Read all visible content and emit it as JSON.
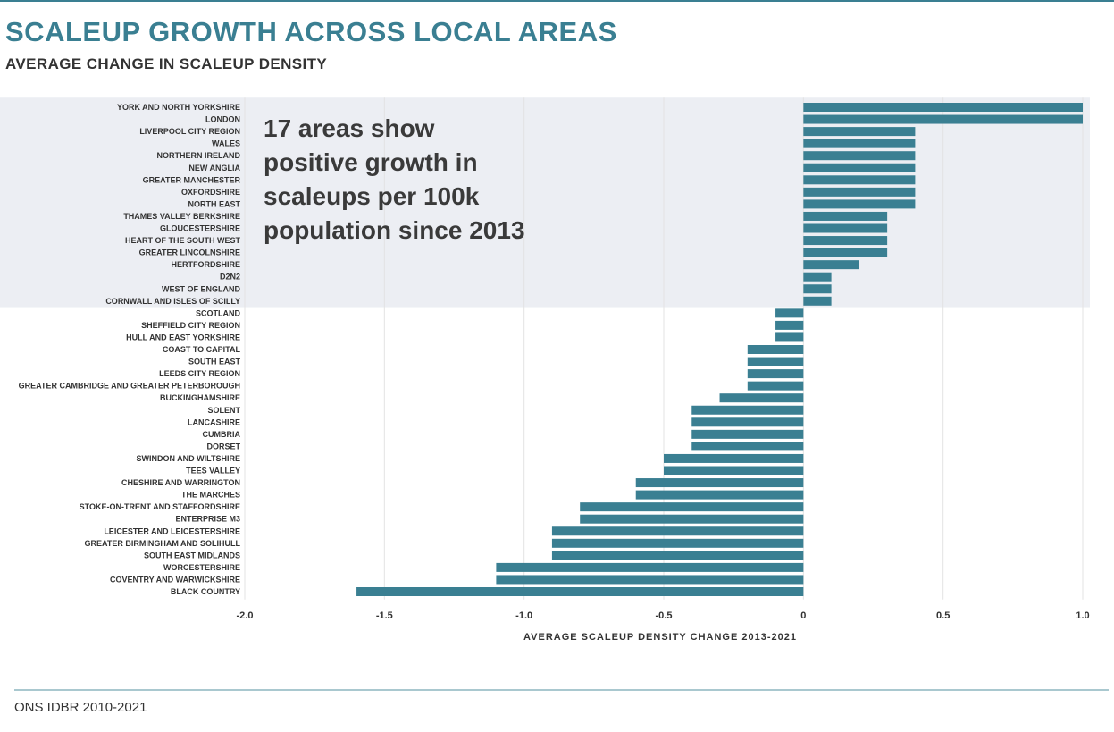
{
  "title": "SCALEUP GROWTH ACROSS LOCAL AREAS",
  "subtitle": "AVERAGE CHANGE IN SCALEUP DENSITY",
  "annotation": "17 areas show positive growth in scaleups per 100k population since 2013",
  "source": "ONS IDBR 2010-2021",
  "colors": {
    "bar": "#3a7f92",
    "highlight_band": "#eceef3",
    "title": "#3a7f92",
    "gridline": "#e3e3e3"
  },
  "chart_data": {
    "type": "bar",
    "orientation": "horizontal",
    "xlabel": "AVERAGE SCALEUP DENSITY CHANGE 2013-2021",
    "xlim": [
      -2.0,
      1.0
    ],
    "xticks": [
      -2.0,
      -1.5,
      -1.0,
      -0.5,
      0,
      0.5,
      1.0
    ],
    "xtick_labels": [
      "-2.0",
      "-1.5",
      "-1.0",
      "-0.5",
      "0",
      "0.5",
      "1.0"
    ],
    "grid": "vertical",
    "highlight_positive_band": true,
    "categories": [
      "YORK AND NORTH YORKSHIRE",
      "LONDON",
      "LIVERPOOL CITY REGION",
      "WALES",
      "NORTHERN IRELAND",
      "NEW ANGLIA",
      "GREATER MANCHESTER",
      "OXFORDSHIRE",
      "NORTH EAST",
      "THAMES VALLEY BERKSHIRE",
      "GLOUCESTERSHIRE",
      "HEART OF THE SOUTH WEST",
      "GREATER LINCOLNSHIRE",
      "HERTFORDSHIRE",
      "D2N2",
      "WEST OF ENGLAND",
      "CORNWALL AND ISLES OF SCILLY",
      "SCOTLAND",
      "SHEFFIELD CITY REGION",
      "HULL AND EAST YORKSHIRE",
      "COAST TO CAPITAL",
      "SOUTH EAST",
      "LEEDS CITY REGION",
      "GREATER CAMBRIDGE AND GREATER PETERBOROUGH",
      "BUCKINGHAMSHIRE",
      "SOLENT",
      "LANCASHIRE",
      "CUMBRIA",
      "DORSET",
      "SWINDON AND WILTSHIRE",
      "TEES VALLEY",
      "CHESHIRE AND WARRINGTON",
      "THE MARCHES",
      "STOKE-ON-TRENT AND STAFFORDSHIRE",
      "ENTERPRISE M3",
      "LEICESTER AND LEICESTERSHIRE",
      "GREATER BIRMINGHAM AND SOLIHULL",
      "SOUTH EAST MIDLANDS",
      "WORCESTERSHIRE",
      "COVENTRY AND WARWICKSHIRE",
      "BLACK COUNTRY"
    ],
    "values": [
      1.0,
      1.0,
      0.4,
      0.4,
      0.4,
      0.4,
      0.4,
      0.4,
      0.4,
      0.3,
      0.3,
      0.3,
      0.3,
      0.2,
      0.1,
      0.1,
      0.1,
      -0.1,
      -0.1,
      -0.1,
      -0.2,
      -0.2,
      -0.2,
      -0.2,
      -0.3,
      -0.4,
      -0.4,
      -0.4,
      -0.4,
      -0.5,
      -0.5,
      -0.6,
      -0.6,
      -0.8,
      -0.8,
      -0.9,
      -0.9,
      -0.9,
      -1.1,
      -1.1,
      -1.6
    ]
  }
}
